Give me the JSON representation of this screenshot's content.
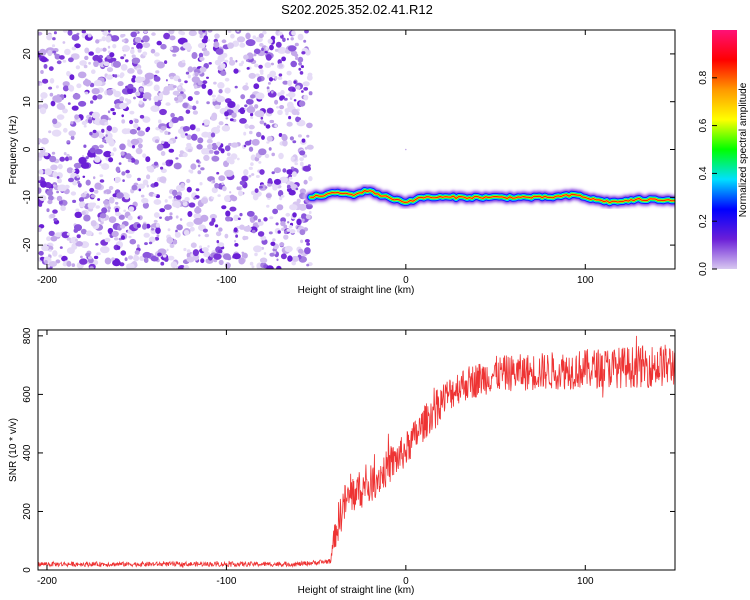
{
  "title": "S202.2025.352.02.41.R12",
  "chart_data": [
    {
      "type": "heatmap",
      "xlabel": "Height of straight line (km)",
      "ylabel": "Frequency (Hz)",
      "xlim": [
        -205,
        150
      ],
      "ylim": [
        -25,
        25
      ],
      "x_ticks": [
        -200,
        -100,
        0,
        100
      ],
      "y_ticks": [
        -20,
        -10,
        0,
        10,
        20
      ],
      "noise_region_x": [
        -205,
        -53
      ],
      "signal_track": [
        {
          "x": -53,
          "y": -10
        },
        {
          "x": -45,
          "y": -9.5
        },
        {
          "x": -38,
          "y": -9
        },
        {
          "x": -30,
          "y": -9.5
        },
        {
          "x": -20,
          "y": -8.5
        },
        {
          "x": -15,
          "y": -9.5
        },
        {
          "x": -5,
          "y": -10.5
        },
        {
          "x": 0,
          "y": -11
        },
        {
          "x": 10,
          "y": -10
        },
        {
          "x": 30,
          "y": -10
        },
        {
          "x": 60,
          "y": -10
        },
        {
          "x": 80,
          "y": -10
        },
        {
          "x": 95,
          "y": -9.5
        },
        {
          "x": 105,
          "y": -10.5
        },
        {
          "x": 115,
          "y": -11
        },
        {
          "x": 130,
          "y": -10.5
        },
        {
          "x": 150,
          "y": -10.5
        }
      ],
      "colorbar": {
        "label": "Normalized spectral amplitude",
        "ticks": [
          "0.0",
          "0.2",
          "0.4",
          "0.6",
          "0.8"
        ],
        "range": [
          0,
          1
        ],
        "colors": [
          "#d8c8f0",
          "#6b1fd8",
          "#0000ff",
          "#00e0ff",
          "#00ff00",
          "#ffff00",
          "#ff9900",
          "#ff0000",
          "#ff1177"
        ]
      }
    },
    {
      "type": "line",
      "xlabel": "Height of straight line (km)",
      "ylabel": "SNR (10 * v/v)",
      "xlim": [
        -205,
        150
      ],
      "ylim": [
        0,
        820
      ],
      "x_ticks": [
        -200,
        -100,
        0,
        100
      ],
      "y_ticks": [
        0,
        200,
        400,
        600,
        800
      ],
      "color": "#ee3333",
      "trend": [
        {
          "x": -205,
          "y": 20
        },
        {
          "x": -60,
          "y": 20
        },
        {
          "x": -42,
          "y": 30
        },
        {
          "x": -40,
          "y": 110
        },
        {
          "x": -35,
          "y": 220
        },
        {
          "x": -30,
          "y": 260
        },
        {
          "x": -20,
          "y": 290
        },
        {
          "x": -10,
          "y": 350
        },
        {
          "x": 0,
          "y": 410
        },
        {
          "x": 10,
          "y": 500
        },
        {
          "x": 20,
          "y": 580
        },
        {
          "x": 30,
          "y": 630
        },
        {
          "x": 50,
          "y": 670
        },
        {
          "x": 80,
          "y": 680
        },
        {
          "x": 110,
          "y": 690
        },
        {
          "x": 150,
          "y": 700
        }
      ],
      "noise_amplitude": [
        {
          "x": -205,
          "y": 8
        },
        {
          "x": -42,
          "y": 8
        },
        {
          "x": -38,
          "y": 70
        },
        {
          "x": 0,
          "y": 60
        },
        {
          "x": 40,
          "y": 60
        },
        {
          "x": 150,
          "y": 75
        }
      ]
    }
  ]
}
